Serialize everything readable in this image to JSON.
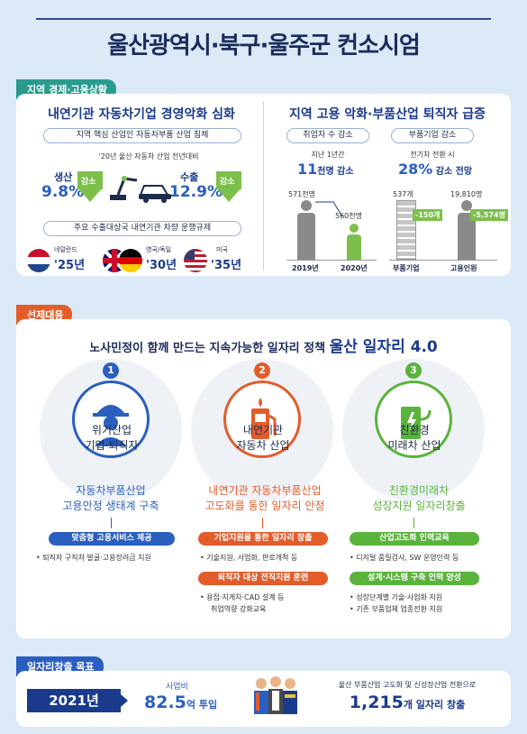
{
  "header": {
    "title": "울산광역시·북구·울주군 컨소시엄"
  },
  "section1": {
    "tag": "지역 경제·고용상황",
    "left": {
      "heading": "내연기관 자동차기업 경영악화 심화",
      "pill1": "지역 핵심 산업인 자동차부품 산업 침체",
      "note": "'20년 울산 자동차 산업 전년대비",
      "production_label": "생산",
      "production_value": "9.8%",
      "decrease": "감소",
      "export_label": "수출",
      "export_value": "12.9%",
      "decrease2": "감소",
      "pill2": "주요 수출대상국 내연기관 차량 운행규제",
      "flags": [
        {
          "country": "네덜란드",
          "year": "'25년"
        },
        {
          "country": "영국/독일",
          "year": "'30년"
        },
        {
          "country": "미국",
          "year": "'35년"
        }
      ]
    },
    "right": {
      "heading": "지역 고용 악화·부품산업 퇴직자 급증",
      "pill_a": "취업자 수 감소",
      "sub_a": "지난 1년간",
      "stat_a_num": "11",
      "stat_a_rest": "천명 감소",
      "pill_b": "부품기업 감소",
      "sub_b": "전기차 전환 시",
      "stat_b_num": "28%",
      "stat_b_rest": "감소 전망",
      "chart_a": {
        "v1": "571천명",
        "v2": "560천명",
        "x1": "2019년",
        "x2": "2020년"
      },
      "chart_b": {
        "v1": "537개",
        "d1": "-150개",
        "x1": "부품기업",
        "v2": "19,810명",
        "d2": "-5,574명",
        "x2": "고용인원"
      }
    }
  },
  "section2": {
    "tag": "선제대응",
    "heading_prefix": "노사민정이 함께 만드는 지속가능한 일자리 정책",
    "heading_main": "울산 일자리 4.0",
    "cols": [
      {
        "num": "1",
        "caption1": "위기산업",
        "caption2": "기업·퇴직자",
        "title1": "자동차부품산업",
        "title2": "고용안정 생태계 구축",
        "bars": [
          {
            "label": "맞춤형 고용서비스 제공",
            "items": [
              "• 퇴직자 구직처 발굴·고용장려금 지원"
            ]
          }
        ]
      },
      {
        "num": "2",
        "caption1": "내연기관",
        "caption2": "자동차 산업",
        "title1": "내연기관 자동차부품산업",
        "title2": "고도화를 통한 일자리 안정",
        "bars": [
          {
            "label": "기업지원을 통한 일자리 창출",
            "items": [
              "• 기술지원, 사업화, 판로개척 등"
            ]
          },
          {
            "label": "퇴직자 대상 전직지원 훈련",
            "items": [
              "• 용접·지게차·CAD 설계 등",
              "취업역량 강화교육"
            ]
          }
        ]
      },
      {
        "num": "3",
        "caption1": "친환경",
        "caption2": "미래차 산업",
        "title1": "친환경미래차",
        "title2": "성장지원 일자리창출",
        "bars": [
          {
            "label": "산업고도화 인력교육",
            "items": [
              "• 디지털 품질검사, SW 운영인력 등"
            ]
          },
          {
            "label": "설계·시스템 구축 인력 양성",
            "items": [
              "• 성장단계별 기술·사업화 지원",
              "• 기존 부품업체 업종전환 지원"
            ]
          }
        ]
      }
    ]
  },
  "section3": {
    "tag": "일자리창출 목표",
    "year": "2021년",
    "budget_label": "사업비",
    "budget_value": "82.5",
    "budget_unit": "억 투입",
    "goal_text": "울산 부품산업 고도화 및 신성장산업 전환으로",
    "goal_value": "1,215",
    "goal_unit": "개 일자리 창출"
  },
  "colors": {
    "blue": "#2a5fc0",
    "red": "#e35d2b",
    "green": "#5ab33c",
    "teal": "#2a9b8f"
  }
}
